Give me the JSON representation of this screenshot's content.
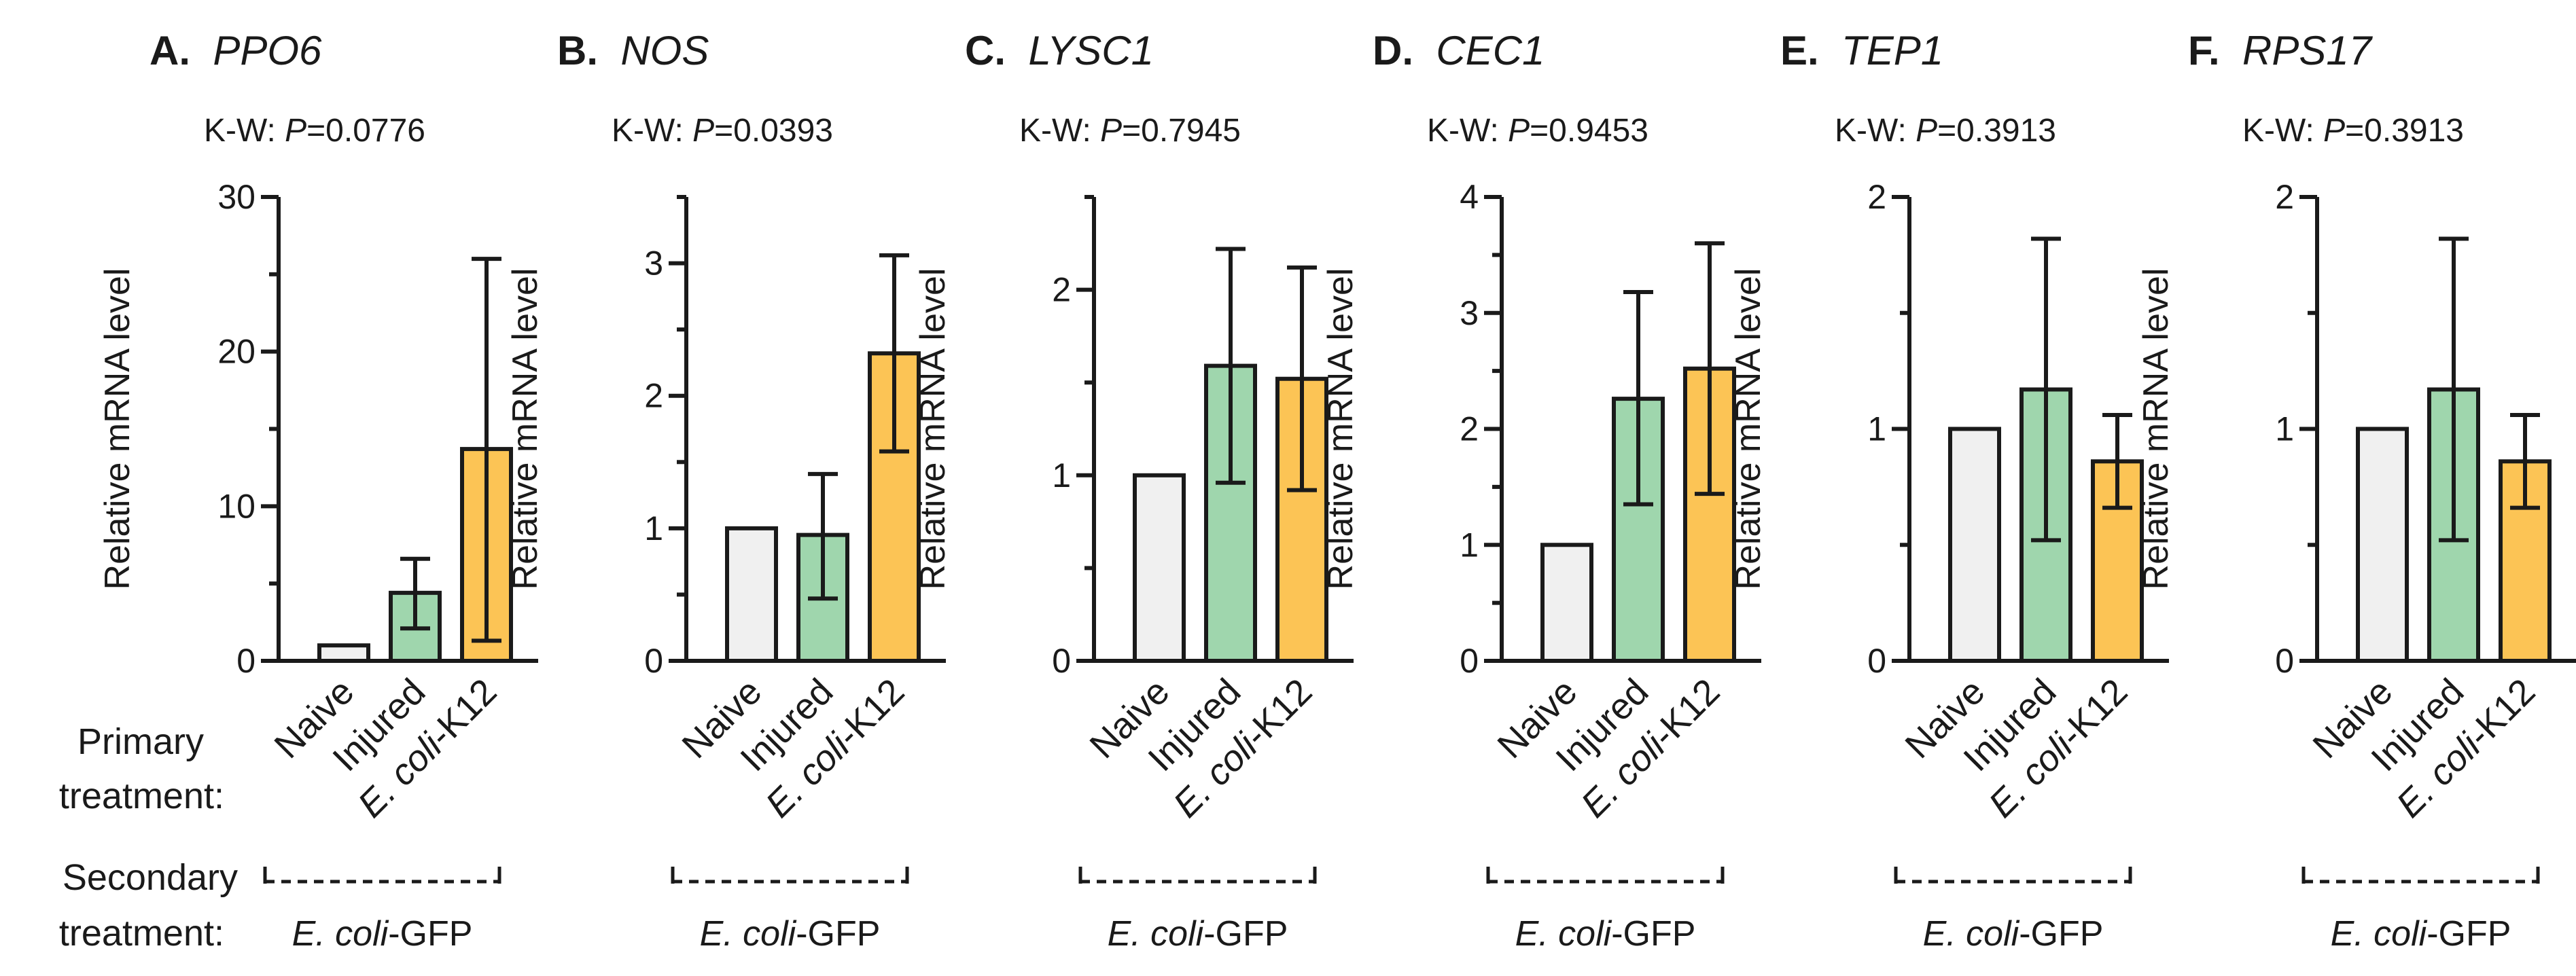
{
  "labels": {
    "primary_line1": "Primary",
    "primary_line2": "treatment:",
    "secondary_line1": "Secondary",
    "secondary_line2": "treatment:",
    "secondary_italic": "E. coli",
    "secondary_suffix": "-GFP",
    "kw_prefix": "K-W: ",
    "kw_p": "P",
    "kw_eq": "="
  },
  "categories": [
    "Naive",
    "Injured",
    "E. coli-K12"
  ],
  "colors": {
    "Naive": "#f0f0f0",
    "Injured": "#9fd6ad",
    "E. coli-K12": "#fcc455",
    "stroke": "#1a1a1a"
  },
  "chart_data": [
    {
      "type": "bar",
      "panel": "A.",
      "title": "PPO6",
      "pvalue": "0.0776",
      "ylabel": "Relative mRNA level",
      "ylim": [
        0,
        30
      ],
      "ticks": [
        0,
        10,
        20,
        30
      ],
      "minor": [
        5,
        15,
        25
      ],
      "categories": [
        "Naive",
        "Injured",
        "E. coli-K12"
      ],
      "values": [
        1.0,
        4.4,
        13.7
      ],
      "err_low": [
        1.0,
        2.1,
        1.3
      ],
      "err_high": [
        1.0,
        6.6,
        26.0
      ]
    },
    {
      "type": "bar",
      "panel": "B.",
      "title": "NOS",
      "pvalue": "0.0393",
      "ylabel": "Relative mRNA level",
      "ylim": [
        0,
        3.5
      ],
      "ticks": [
        0,
        1,
        2,
        3
      ],
      "minor": [
        0.5,
        1.5,
        2.5,
        3.5
      ],
      "categories": [
        "Naive",
        "Injured",
        "E. coli-K12"
      ],
      "values": [
        1.0,
        0.95,
        2.32
      ],
      "err_low": [
        1.0,
        0.47,
        1.58
      ],
      "err_high": [
        1.0,
        1.41,
        3.06
      ]
    },
    {
      "type": "bar",
      "panel": "C.",
      "title": "LYSC1",
      "pvalue": "0.7945",
      "ylabel": "Relative mRNA level",
      "ylim": [
        0,
        2.5
      ],
      "ticks": [
        0,
        1,
        2
      ],
      "minor": [
        0.5,
        1.5,
        2.5
      ],
      "categories": [
        "Naive",
        "Injured",
        "E. coli-K12"
      ],
      "values": [
        1.0,
        1.59,
        1.52
      ],
      "err_low": [
        1.0,
        0.96,
        0.92
      ],
      "err_high": [
        1.0,
        2.22,
        2.12
      ]
    },
    {
      "type": "bar",
      "panel": "D.",
      "title": "CEC1",
      "pvalue": "0.9453",
      "ylabel": "Relative mRNA level",
      "ylim": [
        0,
        4
      ],
      "ticks": [
        0,
        1,
        2,
        3,
        4
      ],
      "minor": [
        0.5,
        1.5,
        2.5,
        3.5
      ],
      "categories": [
        "Naive",
        "Injured",
        "E. coli-K12"
      ],
      "values": [
        1.0,
        2.26,
        2.52
      ],
      "err_low": [
        1.0,
        1.35,
        1.44
      ],
      "err_high": [
        1.0,
        3.18,
        3.6
      ]
    },
    {
      "type": "bar",
      "panel": "E.",
      "title": "TEP1",
      "pvalue": "0.3913",
      "ylabel": "Relative mRNA level",
      "ylim": [
        0,
        2
      ],
      "ticks": [
        0,
        1,
        2
      ],
      "minor": [
        0.5,
        1.5
      ],
      "categories": [
        "Naive",
        "Injured",
        "E. coli-K12"
      ],
      "values": [
        1.0,
        1.17,
        0.86
      ],
      "err_low": [
        1.0,
        0.52,
        0.66
      ],
      "err_high": [
        1.0,
        1.82,
        1.06
      ]
    },
    {
      "type": "bar",
      "panel": "F.",
      "title": "RPS17",
      "pvalue": "0.3913",
      "ylabel": "Relative mRNA level",
      "ylim": [
        0,
        2
      ],
      "ticks": [
        0,
        1,
        2
      ],
      "minor": [
        0.5,
        1.5
      ],
      "categories": [
        "Naive",
        "Injured",
        "E. coli-K12"
      ],
      "values": [
        1.0,
        1.17,
        0.86
      ],
      "err_low": [
        1.0,
        0.52,
        0.66
      ],
      "err_high": [
        1.0,
        1.82,
        1.06
      ]
    }
  ]
}
